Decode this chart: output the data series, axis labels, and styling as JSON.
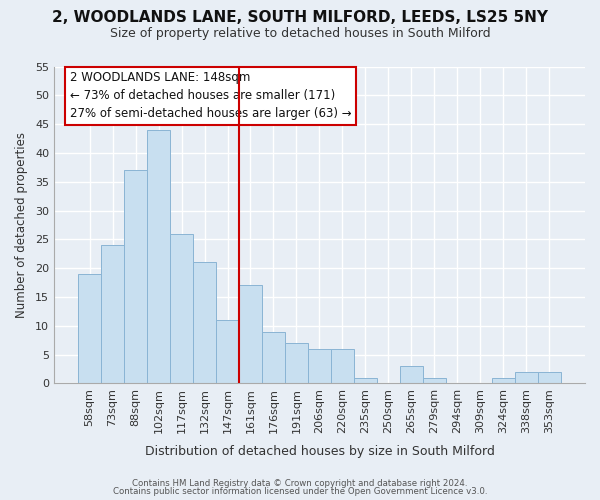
{
  "title1": "2, WOODLANDS LANE, SOUTH MILFORD, LEEDS, LS25 5NY",
  "title2": "Size of property relative to detached houses in South Milford",
  "xlabel": "Distribution of detached houses by size in South Milford",
  "ylabel": "Number of detached properties",
  "bar_color": "#c8dff0",
  "bar_edge_color": "#8ab4d4",
  "categories": [
    "58sqm",
    "73sqm",
    "88sqm",
    "102sqm",
    "117sqm",
    "132sqm",
    "147sqm",
    "161sqm",
    "176sqm",
    "191sqm",
    "206sqm",
    "220sqm",
    "235sqm",
    "250sqm",
    "265sqm",
    "279sqm",
    "294sqm",
    "309sqm",
    "324sqm",
    "338sqm",
    "353sqm"
  ],
  "values": [
    19,
    24,
    37,
    44,
    26,
    21,
    11,
    17,
    9,
    7,
    6,
    6,
    1,
    0,
    3,
    1,
    0,
    0,
    1,
    2,
    2
  ],
  "ylim": [
    0,
    55
  ],
  "yticks": [
    0,
    5,
    10,
    15,
    20,
    25,
    30,
    35,
    40,
    45,
    50,
    55
  ],
  "property_line_x": 6.5,
  "property_line_color": "#cc0000",
  "annotation_title": "2 WOODLANDS LANE: 148sqm",
  "annotation_line1": "← 73% of detached houses are smaller (171)",
  "annotation_line2": "27% of semi-detached houses are larger (63) →",
  "annotation_box_facecolor": "#ffffff",
  "annotation_box_edgecolor": "#cc0000",
  "footer1": "Contains HM Land Registry data © Crown copyright and database right 2024.",
  "footer2": "Contains public sector information licensed under the Open Government Licence v3.0.",
  "background_color": "#e8eef5",
  "grid_color": "#ffffff",
  "title1_fontsize": 11,
  "title2_fontsize": 9
}
